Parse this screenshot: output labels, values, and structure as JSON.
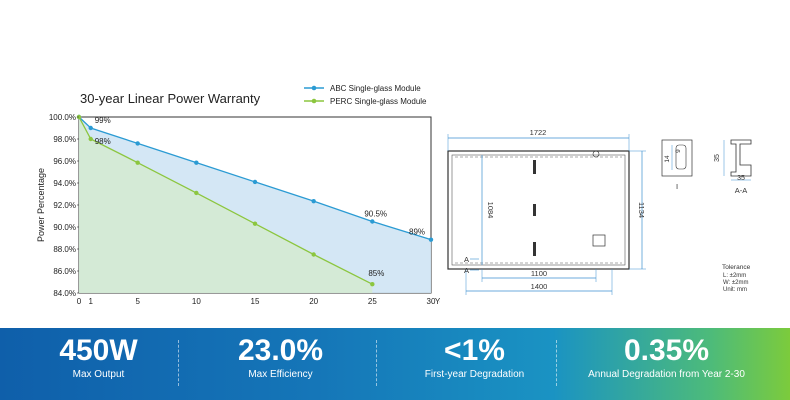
{
  "chart_data": {
    "type": "line",
    "title": "30-year Linear Power Warranty",
    "xlabel": "Year",
    "ylabel": "Power Percentage",
    "xlim": [
      0,
      30
    ],
    "ylim": [
      84,
      100
    ],
    "x_ticks": [
      "0",
      "1",
      "5",
      "10",
      "15",
      "20",
      "25",
      "30"
    ],
    "y_ticks": [
      "84.0%",
      "86.0%",
      "88.0%",
      "90.0%",
      "92.0%",
      "94.0%",
      "96.0%",
      "98.0%",
      "100.0%"
    ],
    "legend_position": "top-right",
    "series": [
      {
        "name": "ABC Single-glass Module",
        "color": "#2b9bd3",
        "fill": "#cfe4f4",
        "x": [
          0,
          1,
          5,
          10,
          15,
          20,
          25,
          30
        ],
        "values": [
          100,
          99,
          97.6,
          95.85,
          94.1,
          92.35,
          90.5,
          88.85
        ]
      },
      {
        "name": "PERC Single-glass Module",
        "color": "#8cc63f",
        "fill": "#d4ead0",
        "x": [
          0,
          1,
          5,
          10,
          15,
          20,
          25
        ],
        "values": [
          100,
          98,
          95.85,
          93.1,
          90.3,
          87.5,
          84.8
        ]
      }
    ],
    "annotations": [
      {
        "text": "99%",
        "x": 1,
        "y": 99
      },
      {
        "text": "98%",
        "x": 1,
        "y": 98
      },
      {
        "text": "90.5%",
        "x": 25,
        "y": 90.5
      },
      {
        "text": "89%",
        "x": 30,
        "y": 88.85
      },
      {
        "text": "85%",
        "x": 25,
        "y": 84.8
      }
    ]
  },
  "drawing": {
    "width_label": "1722",
    "height_label": "1134",
    "inner_height_label": "1084",
    "mount_1100_label": "1100",
    "mount_1400_label": "1400",
    "frame_14": "14",
    "frame_9": "9",
    "frame_35_v": "35",
    "frame_35_h": "35",
    "detail_label": "I",
    "section_label": "A-A",
    "section_mark": "A",
    "tolerance_title": "Tolerance",
    "tolerance_lines": [
      "L: ±2mm",
      "W: ±2mm",
      "Unit: mm"
    ]
  },
  "stats": [
    {
      "value": "450W",
      "label": "Max Output"
    },
    {
      "value": "23.0%",
      "label": "Max Efficiency"
    },
    {
      "value": "<1%",
      "label": "First-year Degradation"
    },
    {
      "value": "0.35%",
      "label": "Annual Degradation from Year 2-30"
    }
  ]
}
